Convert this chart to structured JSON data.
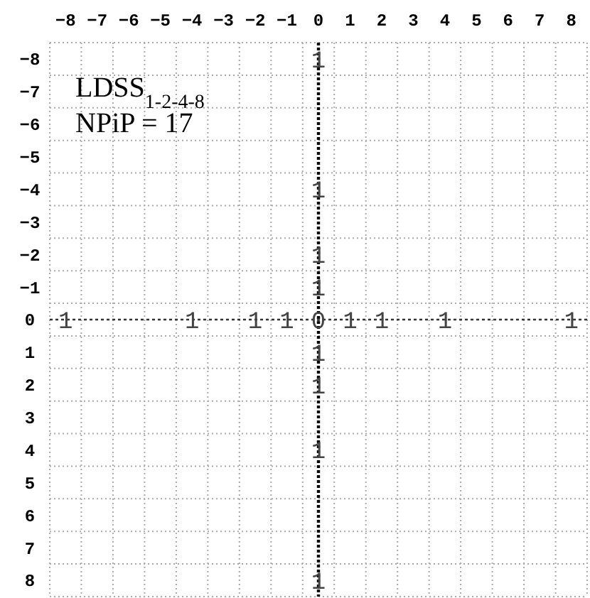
{
  "chart_data": {
    "type": "heatmap",
    "categories": [
      "−8",
      "−7",
      "−6",
      "−5",
      "−4",
      "−3",
      "−2",
      "−1",
      "0",
      "1",
      "2",
      "3",
      "4",
      "5",
      "6",
      "7",
      "8"
    ],
    "y_categories": [
      "−8",
      "−7",
      "−6",
      "−5",
      "−4",
      "−3",
      "−2",
      "−1",
      "0",
      "1",
      "2",
      "3",
      "4",
      "5",
      "6",
      "7",
      "8"
    ],
    "cells": [
      [
        null,
        null,
        null,
        null,
        null,
        null,
        null,
        null,
        1,
        null,
        null,
        null,
        null,
        null,
        null,
        null,
        null
      ],
      [
        null,
        null,
        null,
        null,
        null,
        null,
        null,
        null,
        null,
        null,
        null,
        null,
        null,
        null,
        null,
        null,
        null
      ],
      [
        null,
        null,
        null,
        null,
        null,
        null,
        null,
        null,
        null,
        null,
        null,
        null,
        null,
        null,
        null,
        null,
        null
      ],
      [
        null,
        null,
        null,
        null,
        null,
        null,
        null,
        null,
        null,
        null,
        null,
        null,
        null,
        null,
        null,
        null,
        null
      ],
      [
        null,
        null,
        null,
        null,
        null,
        null,
        null,
        null,
        1,
        null,
        null,
        null,
        null,
        null,
        null,
        null,
        null
      ],
      [
        null,
        null,
        null,
        null,
        null,
        null,
        null,
        null,
        null,
        null,
        null,
        null,
        null,
        null,
        null,
        null,
        null
      ],
      [
        null,
        null,
        null,
        null,
        null,
        null,
        null,
        null,
        1,
        null,
        null,
        null,
        null,
        null,
        null,
        null,
        null
      ],
      [
        null,
        null,
        null,
        null,
        null,
        null,
        null,
        null,
        1,
        null,
        null,
        null,
        null,
        null,
        null,
        null,
        null
      ],
      [
        1,
        null,
        null,
        null,
        1,
        null,
        1,
        1,
        0,
        1,
        1,
        null,
        1,
        null,
        null,
        null,
        1
      ],
      [
        null,
        null,
        null,
        null,
        null,
        null,
        null,
        null,
        1,
        null,
        null,
        null,
        null,
        null,
        null,
        null,
        null
      ],
      [
        null,
        null,
        null,
        null,
        null,
        null,
        null,
        null,
        1,
        null,
        null,
        null,
        null,
        null,
        null,
        null,
        null
      ],
      [
        null,
        null,
        null,
        null,
        null,
        null,
        null,
        null,
        null,
        null,
        null,
        null,
        null,
        null,
        null,
        null,
        null
      ],
      [
        null,
        null,
        null,
        null,
        null,
        null,
        null,
        null,
        1,
        null,
        null,
        null,
        null,
        null,
        null,
        null,
        null
      ],
      [
        null,
        null,
        null,
        null,
        null,
        null,
        null,
        null,
        null,
        null,
        null,
        null,
        null,
        null,
        null,
        null,
        null
      ],
      [
        null,
        null,
        null,
        null,
        null,
        null,
        null,
        null,
        null,
        null,
        null,
        null,
        null,
        null,
        null,
        null,
        null
      ],
      [
        null,
        null,
        null,
        null,
        null,
        null,
        null,
        null,
        null,
        null,
        null,
        null,
        null,
        null,
        null,
        null,
        null
      ],
      [
        null,
        null,
        null,
        null,
        null,
        null,
        null,
        null,
        1,
        null,
        null,
        null,
        null,
        null,
        null,
        null,
        null
      ]
    ],
    "ref_lines": [
      {
        "axis": "x",
        "value": "0",
        "line_style": "dotted",
        "color": "#000000"
      },
      {
        "axis": "y",
        "value": "0",
        "line_style": "dotted",
        "color": "#333333"
      }
    ],
    "grid": true,
    "data_labels": true,
    "annotations": [
      "LDSS$_{1-2-4-8}$",
      "NPiP = 17"
    ]
  }
}
